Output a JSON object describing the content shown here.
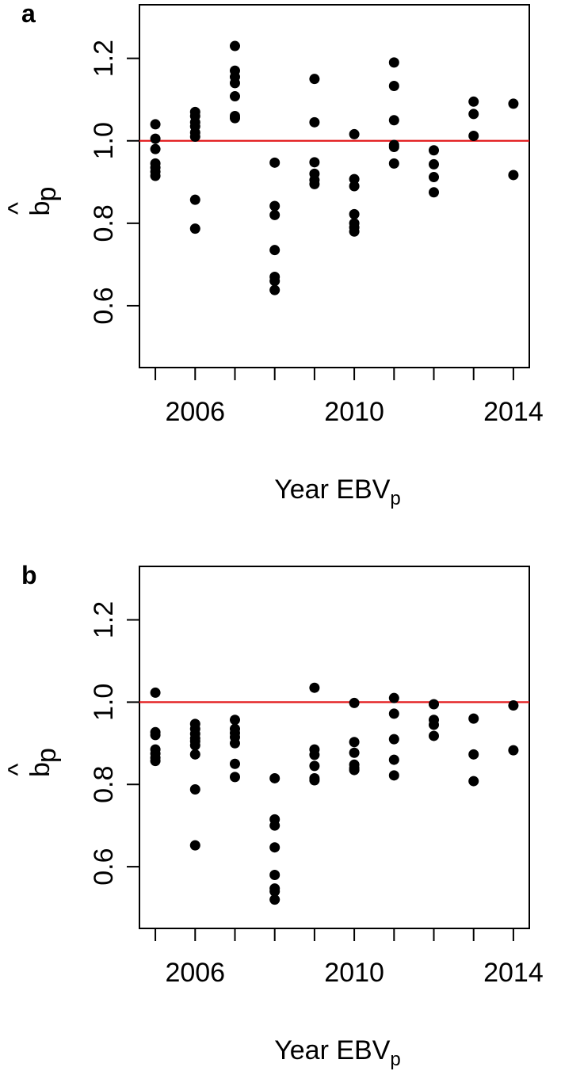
{
  "chart_data": [
    {
      "panel": "a",
      "type": "scatter",
      "xlabel": "Year EBV",
      "xlabel_sub": "p",
      "ylabel": "b",
      "ylabel_hat": "^",
      "ylabel_sub": "p",
      "xlim": [
        2004.6,
        2014.4
      ],
      "ylim": [
        0.45,
        1.33
      ],
      "x_ticks": [
        2005,
        2006,
        2007,
        2008,
        2009,
        2010,
        2011,
        2012,
        2013,
        2014
      ],
      "x_tick_labels": [
        "2006",
        "2010",
        "2014"
      ],
      "x_tick_label_values": [
        2006,
        2010,
        2014
      ],
      "y_ticks": [
        0.6,
        0.8,
        1.0,
        1.2
      ],
      "y_tick_labels": [
        "0.6",
        "0.8",
        "1.0",
        "1.2"
      ],
      "reference_line": {
        "y": 1.0,
        "color": "#e31a1c"
      },
      "series": [
        {
          "x": 2005,
          "y": [
            1.04,
            1.005,
            0.98,
            0.945,
            0.935,
            0.925,
            0.915
          ]
        },
        {
          "x": 2006,
          "y": [
            1.07,
            1.06,
            1.045,
            1.035,
            1.02,
            1.01,
            0.857,
            0.787
          ]
        },
        {
          "x": 2007,
          "y": [
            1.23,
            1.17,
            1.155,
            1.14,
            1.108,
            1.06,
            1.055
          ]
        },
        {
          "x": 2008,
          "y": [
            0.947,
            0.842,
            0.82,
            0.735,
            0.67,
            0.66,
            0.638
          ]
        },
        {
          "x": 2009,
          "y": [
            1.15,
            1.045,
            0.948,
            0.92,
            0.905,
            0.895
          ]
        },
        {
          "x": 2010,
          "y": [
            1.016,
            0.907,
            0.89,
            0.822,
            0.8,
            0.79,
            0.78
          ]
        },
        {
          "x": 2011,
          "y": [
            1.19,
            1.133,
            1.05,
            0.99,
            0.985,
            0.945
          ]
        },
        {
          "x": 2012,
          "y": [
            0.977,
            0.943,
            0.912,
            0.875
          ]
        },
        {
          "x": 2013,
          "y": [
            1.095,
            1.065,
            1.012
          ]
        },
        {
          "x": 2014,
          "y": [
            1.09,
            0.917
          ]
        }
      ]
    },
    {
      "panel": "b",
      "type": "scatter",
      "xlabel": "Year EBV",
      "xlabel_sub": "p",
      "ylabel": "b",
      "ylabel_hat": "^",
      "ylabel_sub": "p",
      "xlim": [
        2004.6,
        2014.4
      ],
      "ylim": [
        0.45,
        1.33
      ],
      "x_ticks": [
        2005,
        2006,
        2007,
        2008,
        2009,
        2010,
        2011,
        2012,
        2013,
        2014
      ],
      "x_tick_labels": [
        "2006",
        "2010",
        "2014"
      ],
      "x_tick_label_values": [
        2006,
        2010,
        2014
      ],
      "y_ticks": [
        0.6,
        0.8,
        1.0,
        1.2
      ],
      "y_tick_labels": [
        "0.6",
        "0.8",
        "1.0",
        "1.2"
      ],
      "reference_line": {
        "y": 1.0,
        "color": "#e31a1c"
      },
      "series": [
        {
          "x": 2005,
          "y": [
            1.023,
            0.927,
            0.92,
            0.885,
            0.875,
            0.865,
            0.857
          ]
        },
        {
          "x": 2006,
          "y": [
            0.947,
            0.935,
            0.923,
            0.912,
            0.905,
            0.895,
            0.873,
            0.788,
            0.652
          ]
        },
        {
          "x": 2007,
          "y": [
            0.957,
            0.935,
            0.925,
            0.915,
            0.9,
            0.85,
            0.818
          ]
        },
        {
          "x": 2008,
          "y": [
            0.815,
            0.715,
            0.7,
            0.647,
            0.58,
            0.547,
            0.54,
            0.52
          ]
        },
        {
          "x": 2009,
          "y": [
            1.035,
            0.885,
            0.872,
            0.845,
            0.815,
            0.81
          ]
        },
        {
          "x": 2010,
          "y": [
            0.998,
            0.903,
            0.877,
            0.848,
            0.84,
            0.835
          ]
        },
        {
          "x": 2011,
          "y": [
            1.01,
            0.972,
            0.91,
            0.86,
            0.822
          ]
        },
        {
          "x": 2012,
          "y": [
            0.995,
            0.957,
            0.945,
            0.918
          ]
        },
        {
          "x": 2013,
          "y": [
            0.96,
            0.873,
            0.808
          ]
        },
        {
          "x": 2014,
          "y": [
            0.992,
            0.883
          ]
        }
      ]
    }
  ]
}
